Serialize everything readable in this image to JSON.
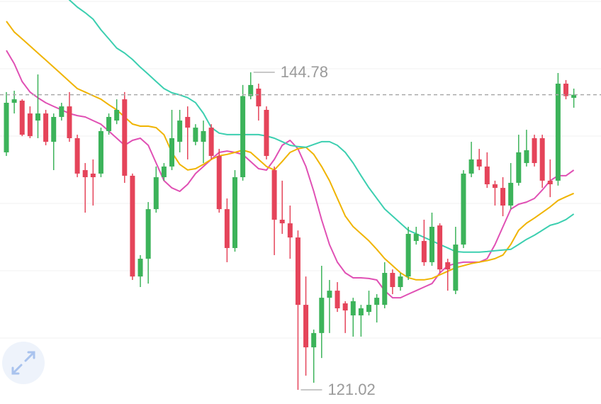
{
  "chart_data": {
    "type": "candlestick",
    "ylim": [
      119.96,
      150.19
    ],
    "up_color": "#3cb35a",
    "down_color": "#e5445a",
    "open": [
      138.79,
      142.5,
      142.66,
      141.7,
      141.17,
      141.7,
      139.58,
      141.44,
      142.23,
      139.85,
      137.46,
      137.2,
      137.2,
      140.38,
      141.17,
      142.76,
      137.04,
      129.5,
      130.83,
      134.54,
      136.93,
      137.73,
      139.58,
      141.44,
      139.58,
      139.58,
      140.64,
      138.52,
      134.54,
      131.63,
      136.93,
      143.0,
      143.56,
      141.97,
      137.46,
      133.75,
      133.48,
      132.42,
      127.38,
      124.2,
      125.27,
      127.91,
      128.44,
      127.49,
      126.59,
      126.59,
      126.85,
      127.38,
      127.38,
      129.77,
      128.71,
      129.5,
      132.16,
      132.16,
      130.57,
      133.32,
      130.57,
      128.44,
      131.89,
      137.2,
      138.26,
      137.73,
      136.4,
      136.13,
      134.81,
      136.51,
      137.99,
      139.85,
      139.85,
      136.67,
      136.67,
      143.93,
      142.87
    ],
    "high": [
      143.3,
      143.4,
      142.76,
      142.23,
      144.62,
      141.97,
      141.7,
      142.5,
      143.3,
      140.11,
      137.99,
      138.26,
      140.64,
      141.7,
      142.76,
      143.3,
      137.2,
      131.1,
      135.07,
      137.73,
      137.99,
      141.97,
      141.97,
      142.23,
      140.9,
      141.17,
      140.9,
      139.05,
      135.34,
      137.46,
      143.83,
      144.78,
      143.93,
      142.23,
      137.73,
      136.67,
      134.81,
      132.95,
      129.5,
      125.53,
      130.3,
      129.24,
      129.08,
      127.65,
      127.91,
      127.38,
      128.44,
      128.18,
      130.57,
      130.03,
      129.77,
      133.22,
      133.22,
      133.75,
      134.28,
      133.48,
      130.83,
      133.22,
      137.46,
      139.58,
      139.05,
      138.79,
      136.67,
      136.93,
      137.99,
      140.11,
      140.48,
      140.11,
      140.11,
      138.26,
      144.73,
      144.2,
      143.56
    ],
    "low": [
      138.52,
      141.7,
      140.0,
      139.85,
      139.85,
      139.32,
      137.46,
      141.17,
      139.58,
      136.93,
      134.28,
      134.81,
      136.93,
      140.11,
      140.9,
      136.51,
      129.24,
      128.71,
      128.97,
      134.28,
      136.67,
      137.46,
      138.79,
      138.26,
      139.32,
      137.99,
      138.26,
      134.28,
      130.57,
      131.36,
      136.67,
      142.76,
      141.17,
      138.26,
      131.1,
      132.69,
      130.83,
      121.02,
      122.08,
      121.55,
      123.4,
      125.27,
      126.85,
      125.27,
      125.0,
      125.0,
      126.59,
      126.06,
      127.12,
      128.18,
      128.44,
      129.24,
      131.89,
      130.3,
      130.3,
      129.77,
      128.44,
      128.18,
      131.63,
      136.93,
      137.46,
      136.13,
      134.81,
      134.01,
      134.54,
      136.3,
      137.73,
      137.73,
      136.13,
      135.44,
      136.3,
      142.76,
      142.13
    ],
    "close": [
      142.5,
      142.76,
      140.11,
      140.0,
      141.7,
      139.58,
      141.44,
      142.23,
      139.85,
      137.2,
      136.93,
      136.93,
      140.38,
      141.44,
      141.97,
      137.04,
      129.5,
      130.83,
      134.54,
      136.93,
      137.73,
      139.85,
      141.17,
      140.64,
      140.64,
      140.38,
      138.52,
      134.54,
      131.63,
      136.93,
      143.0,
      143.83,
      142.23,
      138.52,
      133.75,
      133.48,
      132.42,
      127.38,
      124.2,
      125.27,
      127.91,
      128.44,
      127.12,
      126.96,
      127.65,
      127.12,
      127.38,
      127.91,
      129.77,
      128.71,
      129.5,
      132.69,
      132.69,
      130.57,
      133.22,
      130.03,
      130.03,
      131.89,
      137.2,
      138.26,
      137.73,
      136.4,
      136.13,
      134.81,
      136.51,
      138.79,
      138.95,
      137.99,
      136.67,
      136.4,
      143.93,
      143.0,
      143.1
    ],
    "ma_lines": [
      {
        "color": "#e050b4",
        "values": [
          146.42,
          145.42,
          144.09,
          143.3,
          142.87,
          142.5,
          142.23,
          141.97,
          141.7,
          141.54,
          141.44,
          141.17,
          140.9,
          140.38,
          139.85,
          139.32,
          139.69,
          139.85,
          139.32,
          137.99,
          136.67,
          136.13,
          135.87,
          136.4,
          137.2,
          137.73,
          138.26,
          138.79,
          138.89,
          138.79,
          138.63,
          138.1,
          137.57,
          137.46,
          138.26,
          139.32,
          139.69,
          139.05,
          137.73,
          135.87,
          133.75,
          131.89,
          130.57,
          129.77,
          129.4,
          129.4,
          129.35,
          129.24,
          128.44,
          127.91,
          127.91,
          128.18,
          128.44,
          128.71,
          128.97,
          129.77,
          130.3,
          130.47,
          130.57,
          130.57,
          130.57,
          130.83,
          131.89,
          133.22,
          134.54,
          134.91,
          135.07,
          135.34,
          135.97,
          136.67,
          137.04,
          137.04,
          137.46
        ]
      },
      {
        "color": "#f0b400",
        "values": [
          148.6,
          147.8,
          147.28,
          146.75,
          146.22,
          145.69,
          145.16,
          144.63,
          144.09,
          143.56,
          143.3,
          143.03,
          142.77,
          142.35,
          141.97,
          141.44,
          140.91,
          140.75,
          140.75,
          140.64,
          140.11,
          138.79,
          137.89,
          137.47,
          137.57,
          137.89,
          138.26,
          138.53,
          138.64,
          138.79,
          138.95,
          138.79,
          138.26,
          137.73,
          137.47,
          138.11,
          138.79,
          139.06,
          139.17,
          138.64,
          137.73,
          136.67,
          135.35,
          134.02,
          133.23,
          132.7,
          132.17,
          131.53,
          130.84,
          130.31,
          129.78,
          129.41,
          129.25,
          129.25,
          129.36,
          129.63,
          129.89,
          130.16,
          130.31,
          130.47,
          130.58,
          130.69,
          130.84,
          131.11,
          131.9,
          132.96,
          133.49,
          133.87,
          134.29,
          134.71,
          135.19,
          135.46,
          135.72
        ]
      },
      {
        "color": "#3ccfb0",
        "values": [
          156.02,
          155.23,
          154.43,
          153.79,
          153.1,
          152.31,
          151.51,
          150.83,
          150.19,
          149.66,
          149.24,
          148.76,
          147.96,
          147.28,
          146.59,
          146.22,
          145.74,
          145.16,
          144.63,
          144.09,
          143.56,
          143.25,
          143.09,
          142.88,
          142.51,
          141.71,
          140.65,
          140.23,
          140.12,
          140.12,
          140.12,
          140.12,
          140.12,
          140.01,
          139.85,
          139.59,
          139.32,
          139.22,
          139.17,
          139.38,
          139.59,
          139.59,
          139.32,
          138.79,
          137.99,
          137.05,
          136.14,
          135.35,
          134.55,
          134.02,
          133.49,
          132.96,
          132.7,
          132.43,
          132.17,
          131.9,
          131.64,
          131.37,
          131.32,
          131.32,
          131.32,
          131.37,
          131.43,
          131.48,
          131.53,
          131.9,
          132.28,
          132.59,
          132.96,
          133.33,
          133.49,
          133.76,
          134.18
        ]
      }
    ],
    "high_label": 144.78,
    "low_label": 121.02,
    "last_price_line": true
  }
}
